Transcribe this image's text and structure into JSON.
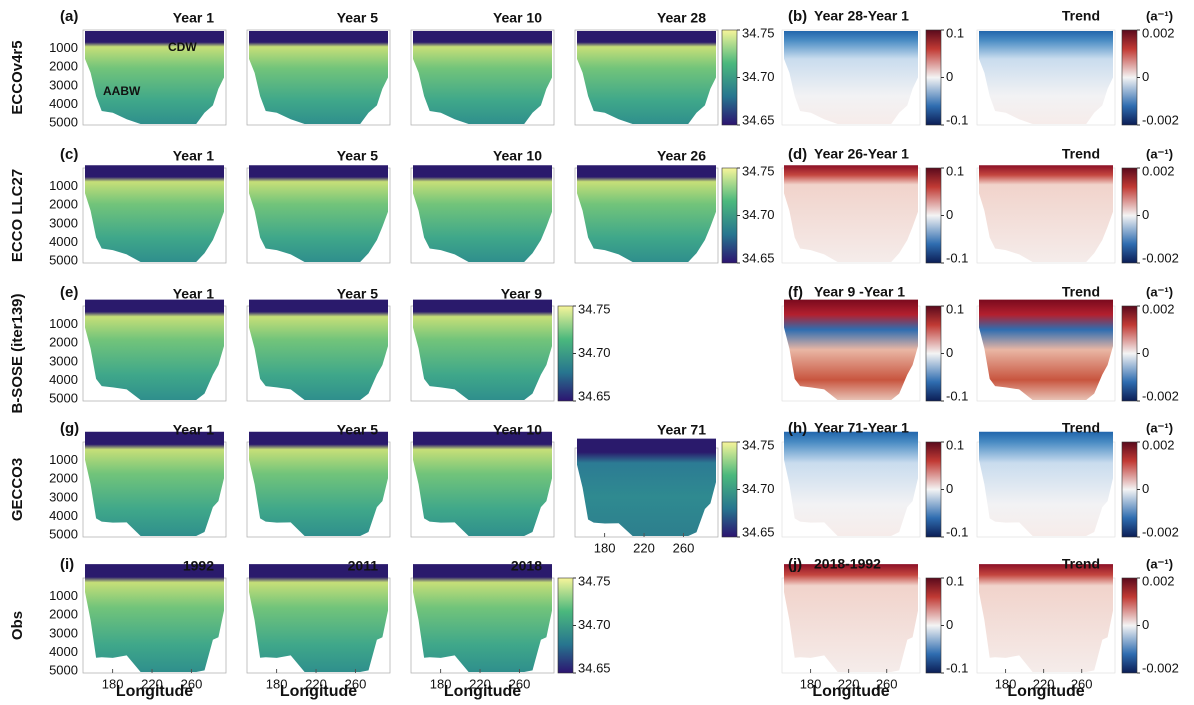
{
  "chart_data": {
    "type": "heatmap-grid",
    "rows": [
      {
        "label": "ECCOv4r5",
        "panels": [
          {
            "tag": "(a)",
            "title": "Year 1"
          },
          {
            "title": "Year 5"
          },
          {
            "title": "Year 10"
          },
          {
            "title": "Year 28"
          }
        ],
        "annotations": [
          "CDW",
          "AABW"
        ],
        "diff": {
          "tag": "(b)",
          "title": "Year 28-Year 1"
        },
        "trend": {
          "title": "Trend",
          "unit": "(a⁻¹)"
        },
        "ylim": [
          0,
          5100
        ],
        "yticks": [
          1000,
          2000,
          3000,
          4000,
          5000
        ]
      },
      {
        "label": "ECCO LLC27",
        "panels": [
          {
            "tag": "(c)",
            "title": "Year 1"
          },
          {
            "title": "Year 5"
          },
          {
            "title": "Year 10"
          },
          {
            "title": "Year 26"
          }
        ],
        "diff": {
          "tag": "(d)",
          "title": "Year 26-Year 1"
        },
        "trend": {
          "title": "Trend",
          "unit": "(a⁻¹)"
        },
        "ylim": [
          0,
          5100
        ],
        "yticks": [
          1000,
          2000,
          3000,
          4000,
          5000
        ]
      },
      {
        "label": "B-SOSE (iter139)",
        "panels": [
          {
            "tag": "(e)",
            "title": "Year 1"
          },
          {
            "title": "Year 5"
          },
          {
            "title": "Year 9"
          }
        ],
        "diff": {
          "tag": "(f)",
          "title": "Year 9 -Year 1"
        },
        "trend": {
          "title": "Trend",
          "unit": "(a⁻¹)"
        },
        "ylim": [
          0,
          5100
        ],
        "yticks": [
          1000,
          2000,
          3000,
          4000,
          5000
        ]
      },
      {
        "label": "GECCO3",
        "panels": [
          {
            "tag": "(g)",
            "title": "Year 1"
          },
          {
            "title": "Year 5"
          },
          {
            "title": "Year 10"
          },
          {
            "title": "Year 71",
            "xaxis": true
          }
        ],
        "diff": {
          "tag": "(h)",
          "title": "Year 71-Year 1"
        },
        "trend": {
          "title": "Trend",
          "unit": "(a⁻¹)"
        },
        "ylim": [
          0,
          5100
        ],
        "yticks": [
          1000,
          2000,
          3000,
          4000,
          5000
        ]
      },
      {
        "label": "Obs",
        "panels": [
          {
            "tag": "(i)",
            "title": "1992",
            "xaxis": true
          },
          {
            "title": "2011",
            "xaxis": true
          },
          {
            "title": "2018",
            "xaxis": true
          }
        ],
        "diff": {
          "tag": "(j)",
          "title": "2018-1992",
          "xaxis": true
        },
        "trend": {
          "title": "Trend",
          "unit": "(a⁻¹)",
          "xaxis": true
        },
        "ylim": [
          0,
          5100
        ],
        "yticks": [
          1000,
          2000,
          3000,
          4000,
          5000
        ]
      }
    ],
    "xlim": [
      150,
      295
    ],
    "xticks": [
      180,
      220,
      260
    ],
    "xlabel": "Longitude",
    "colorbars": {
      "salinity": {
        "clim": [
          34.65,
          34.75
        ],
        "ticks": [
          34.75,
          {
            "value": 34.7,
            "label": "34.70"
          },
          34.65
        ]
      },
      "diff": {
        "clim": [
          -0.1,
          0.1
        ],
        "ticks": [
          0.1,
          0,
          -0.1
        ]
      },
      "trend": {
        "clim": [
          -0.002,
          0.002
        ],
        "ticks": [
          0.002,
          0,
          -0.002
        ]
      }
    }
  }
}
